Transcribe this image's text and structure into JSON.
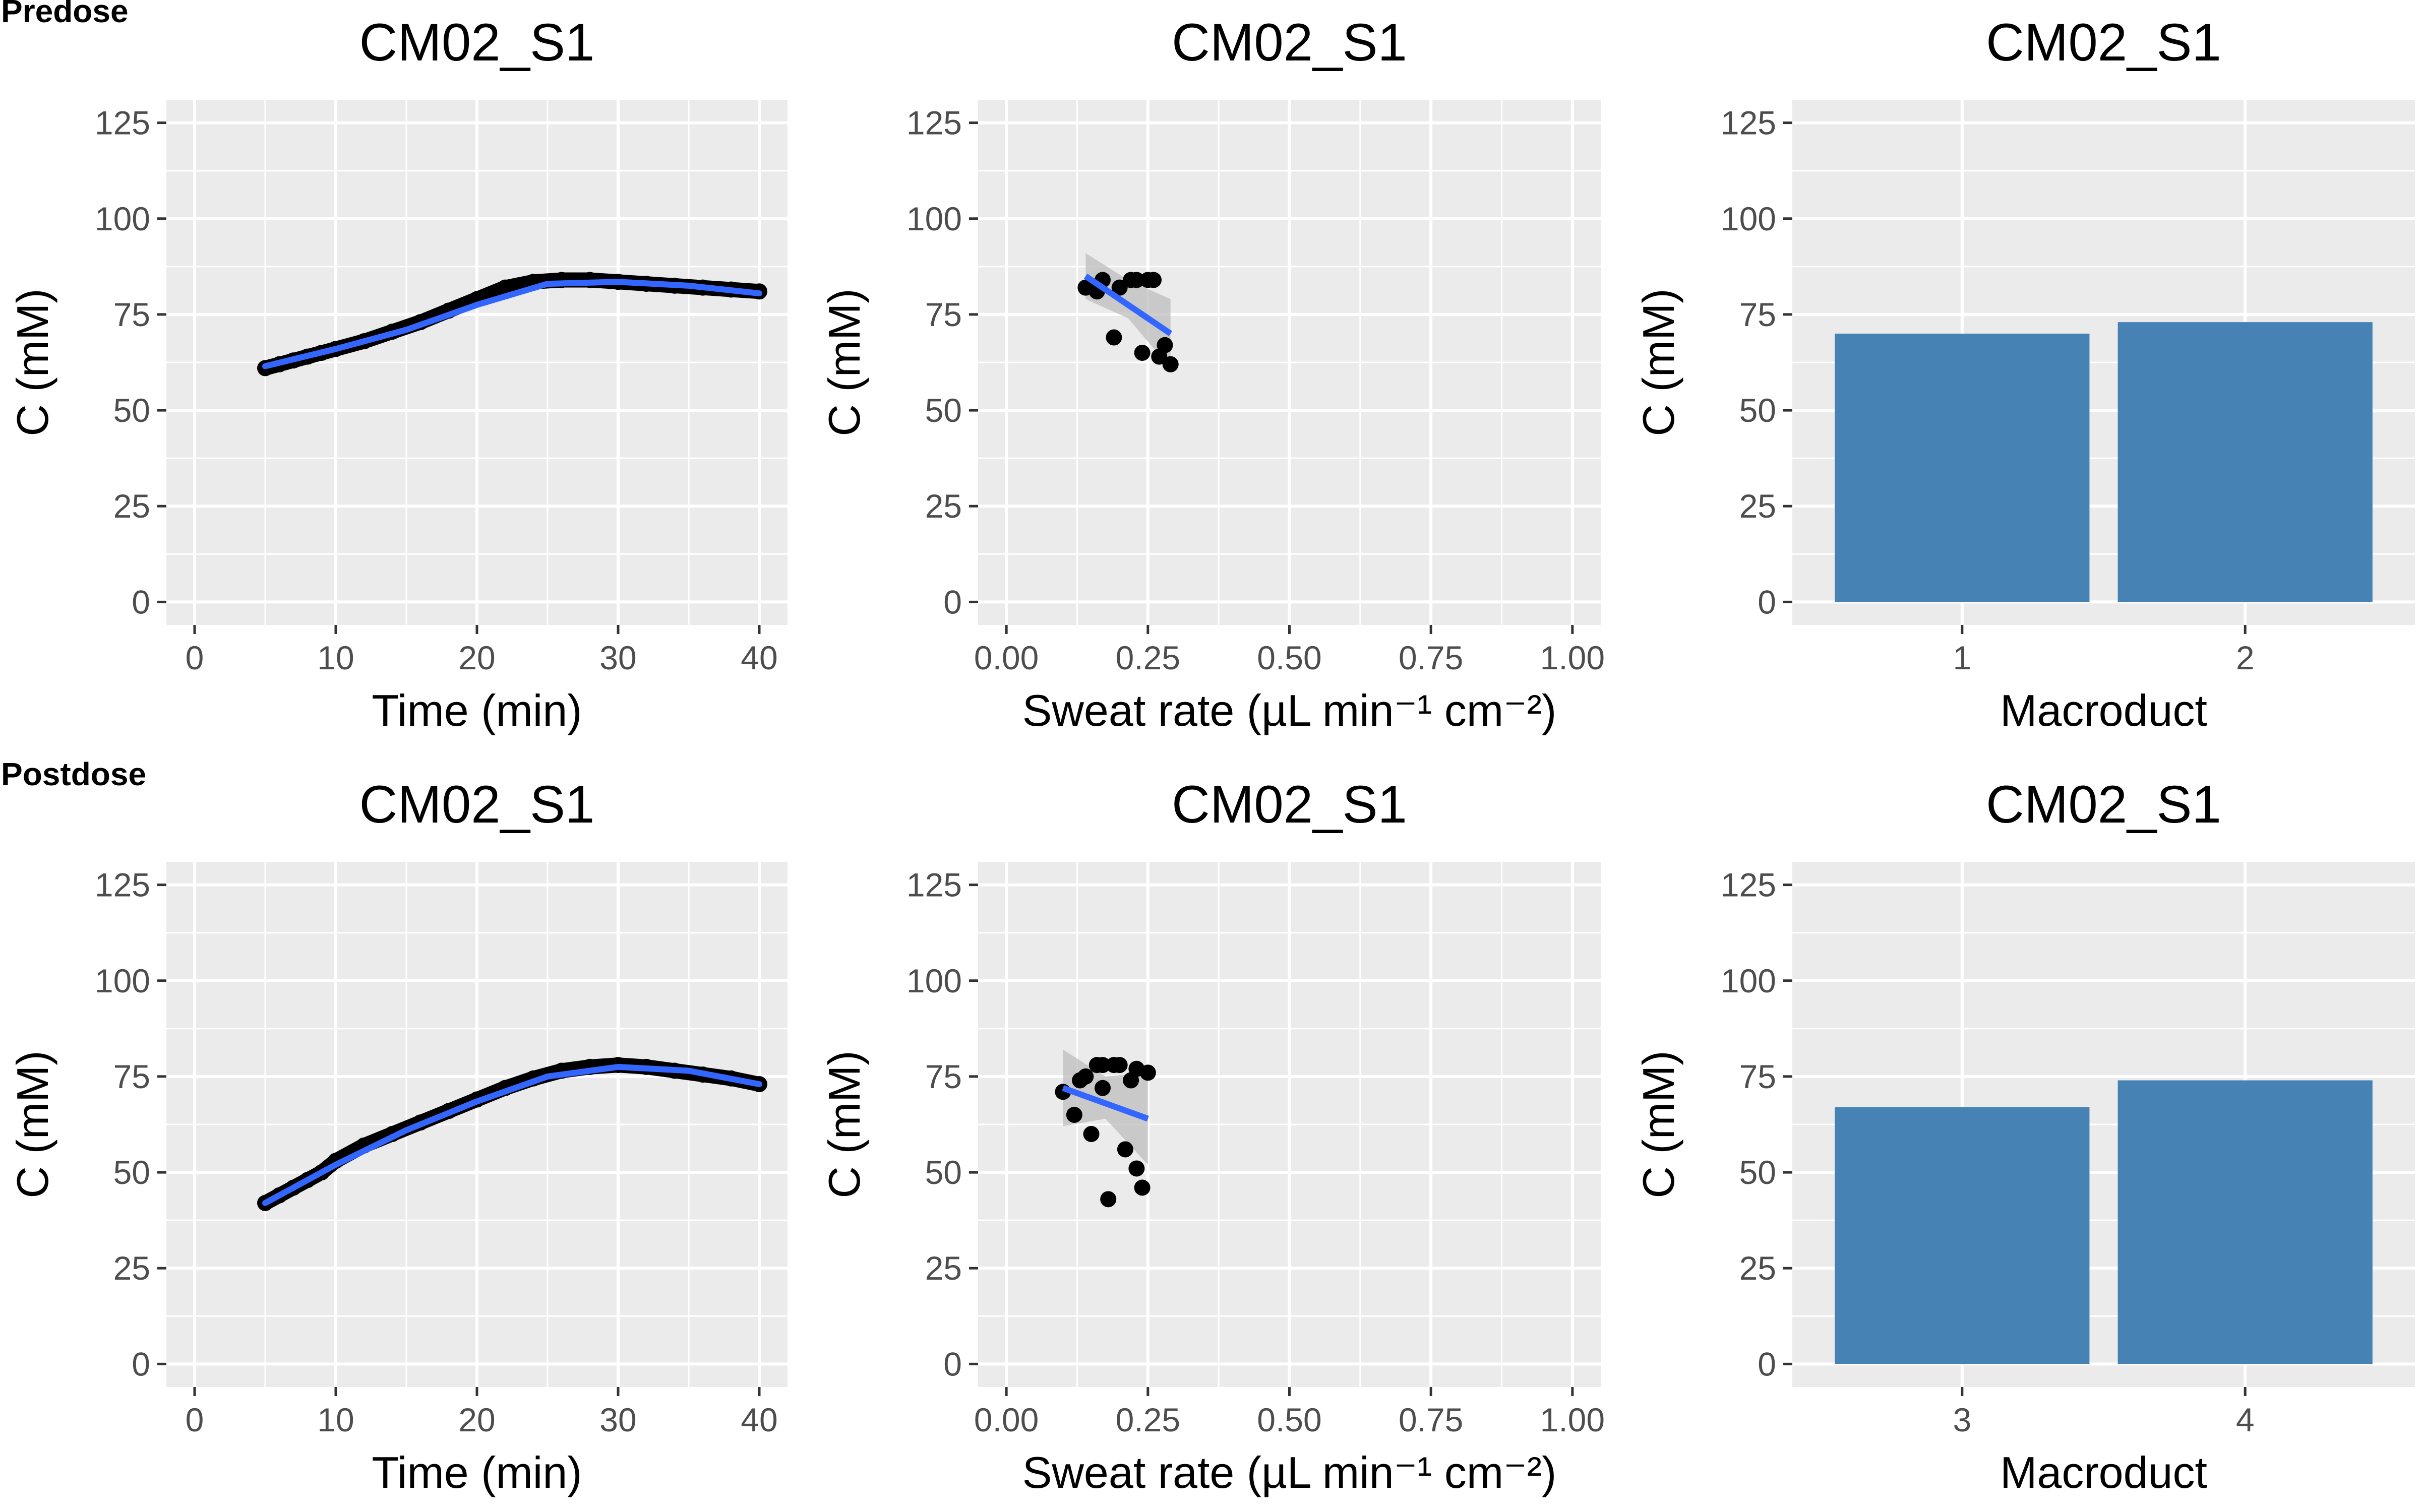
{
  "figure": {
    "row_labels": [
      "Predose",
      "Postdose"
    ],
    "colors": {
      "panel_background": "#ebebeb",
      "grid": "#ffffff",
      "points": "#000000",
      "fit_line": "#3366ff",
      "ribbon": "#bdbdbd",
      "bars": "#4682b4",
      "tick_text": "#4d4d4d"
    }
  },
  "chart_data": [
    {
      "type": "line",
      "row": 0,
      "col": 0,
      "title": "CM02_S1",
      "xlabel": "Time (min)",
      "ylabel": "C (mM)",
      "xlim": [
        -2,
        42
      ],
      "ylim": [
        -6,
        131
      ],
      "xticks": [
        0,
        10,
        20,
        30,
        40
      ],
      "yticks": [
        0,
        25,
        50,
        75,
        100,
        125
      ],
      "grid": true,
      "series": [
        {
          "style": "points",
          "x": [
            5,
            6,
            7,
            8,
            9,
            10,
            12,
            14,
            16,
            18,
            20,
            22,
            24,
            26,
            28,
            30,
            32,
            34,
            36,
            38,
            40
          ],
          "y": [
            61,
            62,
            63,
            64,
            65,
            66,
            68,
            70.5,
            73,
            76,
            79,
            82,
            83.5,
            84,
            84,
            83.5,
            83,
            82.5,
            82,
            81.5,
            81
          ]
        },
        {
          "style": "fit",
          "x": [
            5,
            10,
            15,
            20,
            25,
            30,
            35,
            40
          ],
          "y": [
            61.5,
            66,
            71,
            77.5,
            83,
            83.5,
            82.5,
            80.5
          ]
        }
      ]
    },
    {
      "type": "scatter",
      "row": 0,
      "col": 1,
      "title": "CM02_S1",
      "xlabel": "Sweat rate (µL min⁻¹ cm⁻²)",
      "ylabel": "C (mM)",
      "xlim": [
        -0.05,
        1.05
      ],
      "ylim": [
        -6,
        131
      ],
      "xticks": [
        0.0,
        0.25,
        0.5,
        0.75,
        1.0
      ],
      "xticklabels": [
        "0.00",
        "0.25",
        "0.50",
        "0.75",
        "1.00"
      ],
      "yticks": [
        0,
        25,
        50,
        75,
        100,
        125
      ],
      "grid": true,
      "points": {
        "x": [
          0.14,
          0.16,
          0.17,
          0.19,
          0.2,
          0.22,
          0.23,
          0.24,
          0.25,
          0.26,
          0.27,
          0.28,
          0.29
        ],
        "y": [
          82,
          81,
          84,
          69,
          82,
          84,
          84,
          65,
          84,
          84,
          64,
          67,
          62
        ]
      },
      "fit": {
        "x": [
          0.14,
          0.29
        ],
        "y": [
          85,
          70
        ]
      },
      "ribbon": {
        "x": [
          0.14,
          0.215,
          0.29
        ],
        "upper": [
          91,
          84,
          79
        ],
        "lower": [
          79,
          74,
          61
        ]
      }
    },
    {
      "type": "bar",
      "row": 0,
      "col": 2,
      "title": "CM02_S1",
      "xlabel": "Macroduct",
      "ylabel": "C (mM)",
      "categories": [
        "1",
        "2"
      ],
      "values": [
        70,
        73
      ],
      "ylim": [
        -6,
        131
      ],
      "yticks": [
        0,
        25,
        50,
        75,
        100,
        125
      ],
      "grid": true
    },
    {
      "type": "line",
      "row": 1,
      "col": 0,
      "title": "CM02_S1",
      "xlabel": "Time (min)",
      "ylabel": "C (mM)",
      "xlim": [
        -2,
        42
      ],
      "ylim": [
        -6,
        131
      ],
      "xticks": [
        0,
        10,
        20,
        30,
        40
      ],
      "yticks": [
        0,
        25,
        50,
        75,
        100,
        125
      ],
      "grid": true,
      "series": [
        {
          "style": "points",
          "x": [
            5,
            6,
            7,
            8,
            9,
            10,
            12,
            14,
            16,
            18,
            20,
            22,
            24,
            26,
            28,
            30,
            32,
            34,
            36,
            38,
            40
          ],
          "y": [
            42,
            44,
            46,
            48,
            50,
            53,
            57,
            60,
            63,
            66,
            69,
            72,
            74.5,
            76.5,
            77.5,
            78,
            77.5,
            76.5,
            75.5,
            74.5,
            73
          ]
        },
        {
          "style": "fit",
          "x": [
            5,
            10,
            15,
            20,
            25,
            30,
            35,
            40
          ],
          "y": [
            42,
            52,
            61,
            68.5,
            75,
            77.5,
            76.5,
            73
          ]
        }
      ]
    },
    {
      "type": "scatter",
      "row": 1,
      "col": 1,
      "title": "CM02_S1",
      "xlabel": "Sweat rate (µL min⁻¹ cm⁻²)",
      "ylabel": "C (mM)",
      "xlim": [
        -0.05,
        1.05
      ],
      "ylim": [
        -6,
        131
      ],
      "xticks": [
        0.0,
        0.25,
        0.5,
        0.75,
        1.0
      ],
      "xticklabels": [
        "0.00",
        "0.25",
        "0.50",
        "0.75",
        "1.00"
      ],
      "yticks": [
        0,
        25,
        50,
        75,
        100,
        125
      ],
      "grid": true,
      "points": {
        "x": [
          0.1,
          0.12,
          0.13,
          0.14,
          0.15,
          0.16,
          0.17,
          0.17,
          0.18,
          0.19,
          0.2,
          0.21,
          0.22,
          0.23,
          0.23,
          0.24,
          0.25
        ],
        "y": [
          71,
          65,
          74,
          75,
          60,
          78,
          72,
          78,
          43,
          78,
          78,
          56,
          74,
          51,
          77,
          46,
          76
        ]
      },
      "fit": {
        "x": [
          0.1,
          0.25
        ],
        "y": [
          72,
          64
        ]
      },
      "ribbon": {
        "x": [
          0.1,
          0.175,
          0.25
        ],
        "upper": [
          82,
          75,
          76
        ],
        "lower": [
          62,
          64,
          52
        ]
      }
    },
    {
      "type": "bar",
      "row": 1,
      "col": 2,
      "title": "CM02_S1",
      "xlabel": "Macroduct",
      "ylabel": "C (mM)",
      "categories": [
        "3",
        "4"
      ],
      "values": [
        67,
        74
      ],
      "ylim": [
        -6,
        131
      ],
      "yticks": [
        0,
        25,
        50,
        75,
        100,
        125
      ],
      "grid": true
    }
  ]
}
